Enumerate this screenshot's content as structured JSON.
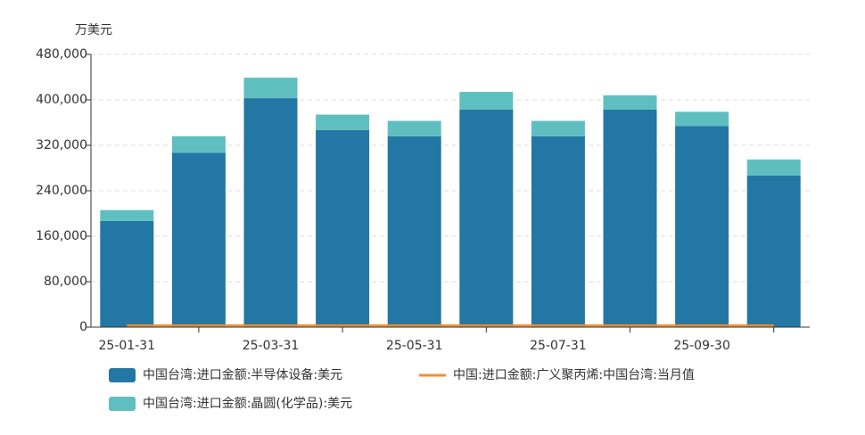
{
  "chart_data": {
    "type": "bar",
    "stacked": true,
    "y_label": "万美元",
    "categories": [
      "25-01-31",
      null,
      "25-03-31",
      null,
      "25-05-31",
      null,
      "25-07-31",
      null,
      "25-09-30",
      null
    ],
    "series": [
      {
        "name": "中国台湾:进口金额:半导体设备:美元",
        "type": "bar",
        "color": "#2377a4",
        "values": [
          187000,
          307000,
          403000,
          347000,
          336000,
          383000,
          336000,
          383000,
          354000,
          267000
        ]
      },
      {
        "name": "中国台湾:进口金额:晶圆(化学品):美元",
        "type": "bar",
        "color": "#5fbfc0",
        "values": [
          19000,
          29000,
          36000,
          27000,
          27000,
          31000,
          27000,
          25000,
          25000,
          28000
        ]
      },
      {
        "name": "中国:进口金额:广义聚丙烯:中国台湾:当月值",
        "type": "line",
        "color": "#f28e2b",
        "values": [
          3000,
          3000,
          3000,
          3000,
          3000,
          3000,
          3000,
          3000,
          3000,
          3000
        ]
      }
    ],
    "ylim": [
      0,
      480000
    ],
    "yticks": [
      0,
      {
        "value": 80000,
        "label": "80,000"
      },
      {
        "value": 160000,
        "label": "160,000"
      },
      {
        "value": 240000,
        "label": "240,000"
      },
      {
        "value": 320000,
        "label": "320,000"
      },
      {
        "value": 400000,
        "label": "400,000"
      },
      {
        "value": 480000,
        "label": "480,000"
      }
    ],
    "grid": true
  }
}
